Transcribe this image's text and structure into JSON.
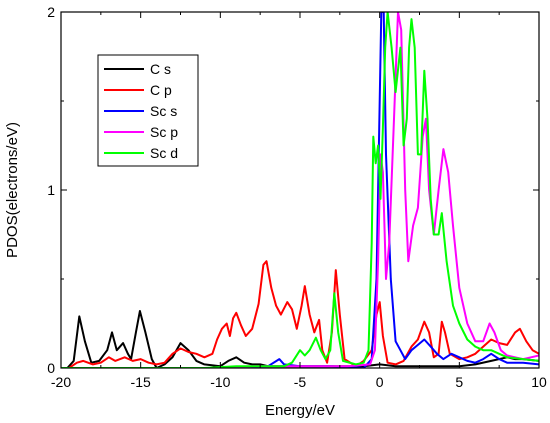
{
  "chart_data": {
    "type": "line",
    "title": "",
    "xlabel": "Energy/eV",
    "ylabel": "PDOS(electrons/eV)",
    "xlim": [
      -20,
      10
    ],
    "ylim": [
      0,
      2
    ],
    "x_ticks": [
      "-20",
      "-15",
      "-10",
      "-5",
      "0",
      "5",
      "10"
    ],
    "x_tick_values": [
      -20,
      -15,
      -10,
      -5,
      0,
      5,
      10
    ],
    "y_ticks": [
      "0",
      "1",
      "2"
    ],
    "y_tick_values": [
      0,
      1,
      2
    ],
    "grid": false,
    "legend_position": "top-left",
    "series": [
      {
        "name": "C  s",
        "color": "#000000",
        "points": [
          [
            -20,
            0.0
          ],
          [
            -19.6,
            0.0
          ],
          [
            -19.2,
            0.04
          ],
          [
            -18.85,
            0.29
          ],
          [
            -18.5,
            0.15
          ],
          [
            -18.1,
            0.03
          ],
          [
            -17.6,
            0.04
          ],
          [
            -17.1,
            0.1
          ],
          [
            -16.8,
            0.2
          ],
          [
            -16.5,
            0.1
          ],
          [
            -16.1,
            0.14
          ],
          [
            -15.8,
            0.08
          ],
          [
            -15.6,
            0.05
          ],
          [
            -15.3,
            0.2
          ],
          [
            -15.05,
            0.32
          ],
          [
            -14.7,
            0.2
          ],
          [
            -14.3,
            0.05
          ],
          [
            -14.0,
            0.0
          ],
          [
            -13.5,
            0.02
          ],
          [
            -13.0,
            0.06
          ],
          [
            -12.5,
            0.14
          ],
          [
            -12.0,
            0.1
          ],
          [
            -11.5,
            0.04
          ],
          [
            -11.0,
            0.02
          ],
          [
            -10.0,
            0.01
          ],
          [
            -9.5,
            0.04
          ],
          [
            -9.0,
            0.06
          ],
          [
            -8.5,
            0.03
          ],
          [
            -8.0,
            0.02
          ],
          [
            -7.5,
            0.02
          ],
          [
            -7.0,
            0.01
          ],
          [
            -6.0,
            0.01
          ],
          [
            -5.0,
            0.01
          ],
          [
            -4.0,
            0.01
          ],
          [
            -3.0,
            0.01
          ],
          [
            -2.0,
            0.01
          ],
          [
            -1.0,
            0.01
          ],
          [
            0.0,
            0.02
          ],
          [
            1.0,
            0.01
          ],
          [
            2.0,
            0.01
          ],
          [
            3.0,
            0.01
          ],
          [
            4.0,
            0.01
          ],
          [
            5.0,
            0.01
          ],
          [
            6.0,
            0.02
          ],
          [
            7.0,
            0.04
          ],
          [
            8.0,
            0.06
          ],
          [
            8.5,
            0.05
          ],
          [
            9.0,
            0.05
          ],
          [
            10.0,
            0.04
          ]
        ]
      },
      {
        "name": "C  p",
        "color": "#ff0000",
        "points": [
          [
            -20,
            0.0
          ],
          [
            -19.5,
            0.0
          ],
          [
            -19.0,
            0.03
          ],
          [
            -18.6,
            0.04
          ],
          [
            -18.0,
            0.02
          ],
          [
            -17.5,
            0.03
          ],
          [
            -17.0,
            0.06
          ],
          [
            -16.6,
            0.04
          ],
          [
            -16.0,
            0.06
          ],
          [
            -15.5,
            0.04
          ],
          [
            -15.0,
            0.05
          ],
          [
            -14.5,
            0.03
          ],
          [
            -14.0,
            0.02
          ],
          [
            -13.5,
            0.03
          ],
          [
            -13.0,
            0.08
          ],
          [
            -12.5,
            0.11
          ],
          [
            -12.0,
            0.09
          ],
          [
            -11.5,
            0.08
          ],
          [
            -11.0,
            0.06
          ],
          [
            -10.5,
            0.08
          ],
          [
            -10.2,
            0.16
          ],
          [
            -9.9,
            0.22
          ],
          [
            -9.6,
            0.25
          ],
          [
            -9.4,
            0.18
          ],
          [
            -9.2,
            0.28
          ],
          [
            -9.0,
            0.31
          ],
          [
            -8.7,
            0.24
          ],
          [
            -8.4,
            0.18
          ],
          [
            -8.0,
            0.22
          ],
          [
            -7.6,
            0.36
          ],
          [
            -7.3,
            0.58
          ],
          [
            -7.1,
            0.6
          ],
          [
            -6.8,
            0.45
          ],
          [
            -6.5,
            0.35
          ],
          [
            -6.2,
            0.3
          ],
          [
            -5.8,
            0.37
          ],
          [
            -5.5,
            0.33
          ],
          [
            -5.2,
            0.22
          ],
          [
            -4.9,
            0.35
          ],
          [
            -4.7,
            0.46
          ],
          [
            -4.4,
            0.3
          ],
          [
            -4.1,
            0.2
          ],
          [
            -3.8,
            0.27
          ],
          [
            -3.6,
            0.1
          ],
          [
            -3.3,
            0.03
          ],
          [
            -3.0,
            0.2
          ],
          [
            -2.75,
            0.55
          ],
          [
            -2.5,
            0.3
          ],
          [
            -2.2,
            0.05
          ],
          [
            -1.5,
            0.01
          ],
          [
            -1.0,
            0.04
          ],
          [
            -0.5,
            0.1
          ],
          [
            -0.2,
            0.3
          ],
          [
            0.0,
            0.37
          ],
          [
            0.2,
            0.18
          ],
          [
            0.5,
            0.03
          ],
          [
            1.0,
            0.02
          ],
          [
            1.5,
            0.04
          ],
          [
            2.0,
            0.12
          ],
          [
            2.4,
            0.16
          ],
          [
            2.8,
            0.26
          ],
          [
            3.1,
            0.2
          ],
          [
            3.4,
            0.06
          ],
          [
            3.7,
            0.08
          ],
          [
            3.9,
            0.26
          ],
          [
            4.1,
            0.2
          ],
          [
            4.4,
            0.08
          ],
          [
            5.0,
            0.05
          ],
          [
            5.5,
            0.06
          ],
          [
            6.0,
            0.08
          ],
          [
            6.5,
            0.12
          ],
          [
            7.0,
            0.16
          ],
          [
            7.5,
            0.14
          ],
          [
            8.0,
            0.13
          ],
          [
            8.5,
            0.2
          ],
          [
            8.8,
            0.22
          ],
          [
            9.2,
            0.15
          ],
          [
            9.6,
            0.1
          ],
          [
            10.0,
            0.08
          ]
        ]
      },
      {
        "name": "Sc s",
        "color": "#0000ff",
        "points": [
          [
            -20,
            0.0
          ],
          [
            -17,
            0.0
          ],
          [
            -14,
            0.0
          ],
          [
            -10,
            0.0
          ],
          [
            -7,
            0.01
          ],
          [
            -6.3,
            0.05
          ],
          [
            -6.0,
            0.02
          ],
          [
            -5,
            0.01
          ],
          [
            -3,
            0.01
          ],
          [
            -1,
            0.0
          ],
          [
            -0.5,
            0.05
          ],
          [
            -0.2,
            0.5
          ],
          [
            0.0,
            1.5
          ],
          [
            0.1,
            2.0
          ],
          [
            0.25,
            2.0
          ],
          [
            0.4,
            1.2
          ],
          [
            0.7,
            0.5
          ],
          [
            1.0,
            0.15
          ],
          [
            1.3,
            0.1
          ],
          [
            1.6,
            0.05
          ],
          [
            2.0,
            0.1
          ],
          [
            2.4,
            0.13
          ],
          [
            2.8,
            0.16
          ],
          [
            3.2,
            0.12
          ],
          [
            3.6,
            0.08
          ],
          [
            4.0,
            0.05
          ],
          [
            4.5,
            0.08
          ],
          [
            5.0,
            0.06
          ],
          [
            5.5,
            0.04
          ],
          [
            6.0,
            0.03
          ],
          [
            6.5,
            0.05
          ],
          [
            7.0,
            0.08
          ],
          [
            7.5,
            0.05
          ],
          [
            8.0,
            0.03
          ],
          [
            9.0,
            0.03
          ],
          [
            10.0,
            0.02
          ]
        ]
      },
      {
        "name": "Sc p",
        "color": "#ff00ff",
        "points": [
          [
            -20,
            0.0
          ],
          [
            -15,
            0.0
          ],
          [
            -10,
            0.0
          ],
          [
            -8,
            0.01
          ],
          [
            -6,
            0.01
          ],
          [
            -4,
            0.01
          ],
          [
            -2,
            0.01
          ],
          [
            -0.6,
            0.02
          ],
          [
            -0.3,
            0.1
          ],
          [
            -0.1,
            0.6
          ],
          [
            0.05,
            1.2
          ],
          [
            0.2,
            1.1
          ],
          [
            0.4,
            0.5
          ],
          [
            0.6,
            0.7
          ],
          [
            0.9,
            1.4
          ],
          [
            1.15,
            2.0
          ],
          [
            1.35,
            1.9
          ],
          [
            1.6,
            1.0
          ],
          [
            1.8,
            0.6
          ],
          [
            2.1,
            0.8
          ],
          [
            2.4,
            0.9
          ],
          [
            2.7,
            1.3
          ],
          [
            2.9,
            1.4
          ],
          [
            3.1,
            1.0
          ],
          [
            3.4,
            0.75
          ],
          [
            3.7,
            1.0
          ],
          [
            4.0,
            1.23
          ],
          [
            4.3,
            1.1
          ],
          [
            4.6,
            0.8
          ],
          [
            5.0,
            0.45
          ],
          [
            5.5,
            0.25
          ],
          [
            6.0,
            0.15
          ],
          [
            6.5,
            0.15
          ],
          [
            6.9,
            0.25
          ],
          [
            7.2,
            0.2
          ],
          [
            7.6,
            0.1
          ],
          [
            8.0,
            0.07
          ],
          [
            8.5,
            0.06
          ],
          [
            9.0,
            0.05
          ],
          [
            9.5,
            0.06
          ],
          [
            10.0,
            0.07
          ]
        ]
      },
      {
        "name": "Sc d",
        "color": "#00ff00",
        "points": [
          [
            -20,
            0.0
          ],
          [
            -15,
            0.0
          ],
          [
            -11,
            0.0
          ],
          [
            -9,
            0.01
          ],
          [
            -7,
            0.01
          ],
          [
            -6,
            0.01
          ],
          [
            -5.5,
            0.03
          ],
          [
            -5.0,
            0.1
          ],
          [
            -4.7,
            0.07
          ],
          [
            -4.4,
            0.1
          ],
          [
            -4.0,
            0.17
          ],
          [
            -3.7,
            0.1
          ],
          [
            -3.4,
            0.05
          ],
          [
            -3.1,
            0.1
          ],
          [
            -2.85,
            0.42
          ],
          [
            -2.6,
            0.2
          ],
          [
            -2.3,
            0.04
          ],
          [
            -1.5,
            0.02
          ],
          [
            -1.0,
            0.03
          ],
          [
            -0.7,
            0.1
          ],
          [
            -0.5,
            0.7
          ],
          [
            -0.4,
            1.3
          ],
          [
            -0.25,
            1.15
          ],
          [
            -0.1,
            1.25
          ],
          [
            0.05,
            0.95
          ],
          [
            0.2,
            1.35
          ],
          [
            0.35,
            1.8
          ],
          [
            0.5,
            2.0
          ],
          [
            0.75,
            1.8
          ],
          [
            1.0,
            1.55
          ],
          [
            1.3,
            1.8
          ],
          [
            1.5,
            1.25
          ],
          [
            1.7,
            1.4
          ],
          [
            1.85,
            1.8
          ],
          [
            2.0,
            1.96
          ],
          [
            2.2,
            1.8
          ],
          [
            2.4,
            1.2
          ],
          [
            2.6,
            1.2
          ],
          [
            2.8,
            1.67
          ],
          [
            3.0,
            1.4
          ],
          [
            3.2,
            0.95
          ],
          [
            3.4,
            0.75
          ],
          [
            3.7,
            0.75
          ],
          [
            3.9,
            0.87
          ],
          [
            4.2,
            0.6
          ],
          [
            4.6,
            0.35
          ],
          [
            5.0,
            0.25
          ],
          [
            5.5,
            0.16
          ],
          [
            6.0,
            0.12
          ],
          [
            6.5,
            0.1
          ],
          [
            7.0,
            0.1
          ],
          [
            7.5,
            0.08
          ],
          [
            8.0,
            0.06
          ],
          [
            9.0,
            0.05
          ],
          [
            10.0,
            0.04
          ]
        ]
      }
    ]
  }
}
